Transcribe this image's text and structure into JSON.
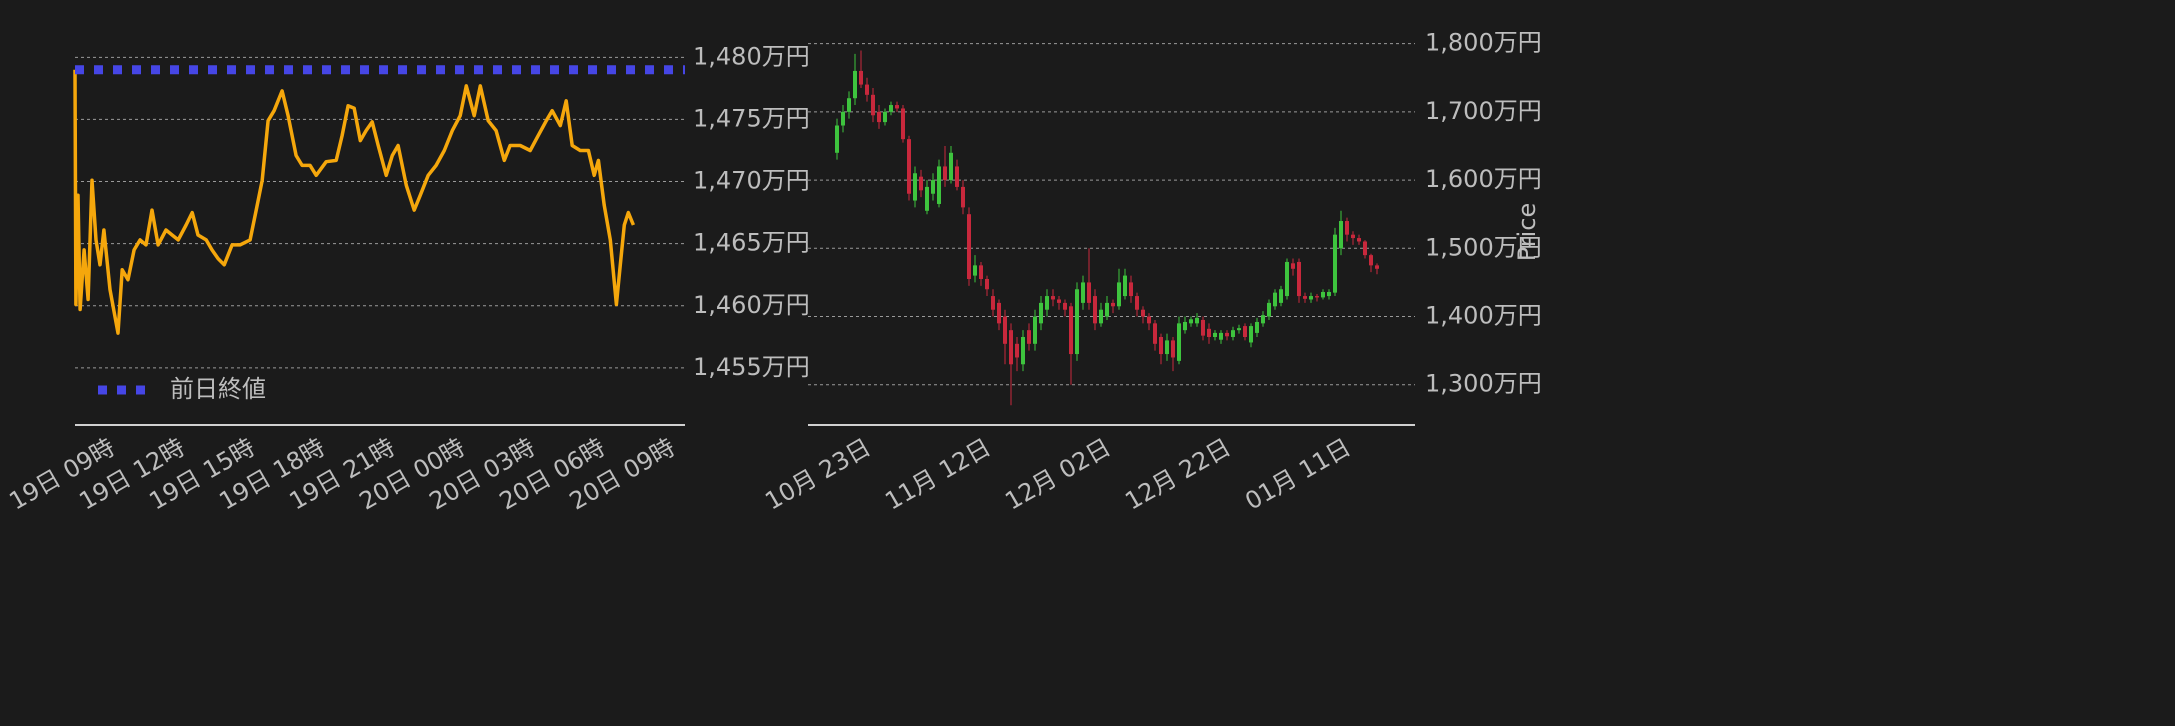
{
  "chart_data": [
    {
      "type": "line",
      "xlim": [
        7.37,
        33.5
      ],
      "xticks": [
        {
          "value": 9,
          "label": "19日 09時"
        },
        {
          "value": 12,
          "label": "19日 12時"
        },
        {
          "value": 15,
          "label": "19日 15時"
        },
        {
          "value": 18,
          "label": "19日 18時"
        },
        {
          "value": 21,
          "label": "19日 21時"
        },
        {
          "value": 24,
          "label": "20日 00時"
        },
        {
          "value": 27,
          "label": "20日 03時"
        },
        {
          "value": 30,
          "label": "20日 06時"
        },
        {
          "value": 33,
          "label": "20日 09時"
        }
      ],
      "ylim": [
        1450.4,
        1482.2
      ],
      "yticks": [
        {
          "value": 1455,
          "label": "1,455万円"
        },
        {
          "value": 1460,
          "label": "1,460万円"
        },
        {
          "value": 1465,
          "label": "1,465万円"
        },
        {
          "value": 1470,
          "label": "1,470万円"
        },
        {
          "value": 1475,
          "label": "1,475万円"
        },
        {
          "value": 1480,
          "label": "1,480万円"
        }
      ],
      "grid": true,
      "legend": "lower left",
      "series": [
        {
          "color": "#f5a70c",
          "x": [
            7.37,
            7.41,
            7.5,
            7.59,
            7.76,
            7.93,
            8.1,
            8.27,
            8.44,
            8.61,
            8.87,
            9.21,
            9.39,
            9.64,
            9.9,
            10.16,
            10.41,
            10.67,
            10.93,
            11.27,
            11.53,
            11.79,
            12.13,
            12.39,
            12.64,
            12.99,
            13.24,
            13.5,
            13.76,
            14.1,
            14.44,
            14.87,
            15.13,
            15.39,
            15.64,
            15.9,
            16.24,
            16.5,
            16.84,
            17.1,
            17.44,
            17.7,
            18.13,
            18.56,
            18.81,
            19.07,
            19.33,
            19.59,
            19.84,
            20.1,
            20.36,
            20.7,
            20.96,
            21.21,
            21.56,
            21.9,
            22.16,
            22.5,
            22.84,
            23.19,
            23.53,
            23.87,
            24.13,
            24.47,
            24.73,
            25.07,
            25.41,
            25.76,
            26.01,
            26.44,
            26.87,
            27.21,
            27.56,
            27.81,
            28.16,
            28.41,
            28.67,
            29.01,
            29.36,
            29.61,
            29.79,
            30.04,
            30.3,
            30.56,
            30.73,
            30.9,
            31.07,
            31.29
          ],
          "values": [
            1479.0,
            1460.1,
            1468.9,
            1459.7,
            1464.5,
            1460.5,
            1470.1,
            1465.3,
            1463.3,
            1466.1,
            1461.3,
            1457.8,
            1462.9,
            1462.1,
            1464.5,
            1465.3,
            1464.9,
            1467.7,
            1464.9,
            1466.1,
            1465.7,
            1465.3,
            1466.5,
            1467.5,
            1465.7,
            1465.3,
            1464.5,
            1463.8,
            1463.3,
            1464.9,
            1464.9,
            1465.3,
            1467.7,
            1470.1,
            1474.9,
            1475.7,
            1477.3,
            1475.3,
            1472.1,
            1471.3,
            1471.3,
            1470.5,
            1471.6,
            1471.7,
            1473.7,
            1476.1,
            1475.9,
            1473.3,
            1474.1,
            1474.8,
            1472.9,
            1470.5,
            1472.1,
            1472.9,
            1469.7,
            1467.7,
            1468.9,
            1470.5,
            1471.3,
            1472.5,
            1474.1,
            1475.3,
            1477.7,
            1475.3,
            1477.7,
            1474.9,
            1474.1,
            1471.7,
            1472.9,
            1472.9,
            1472.5,
            1473.7,
            1474.9,
            1475.7,
            1474.5,
            1476.5,
            1472.9,
            1472.5,
            1472.5,
            1470.5,
            1471.7,
            1468.1,
            1465.3,
            1460.1,
            1463.3,
            1466.5,
            1467.5,
            1466.5
          ]
        },
        {
          "name": "前日終値",
          "color": "#4646e6",
          "style": "dotted",
          "x": [
            7.37,
            33.5
          ],
          "values": [
            1479,
            1479
          ]
        }
      ]
    },
    {
      "type": "candlestick",
      "y_label": "Price",
      "categories": [
        null,
        null,
        null,
        "10月 23日",
        null,
        null,
        null,
        null,
        null,
        null,
        null,
        null,
        null,
        null,
        null,
        null,
        null,
        null,
        null,
        null,
        null,
        null,
        null,
        "11月 12日",
        null,
        null,
        null,
        null,
        null,
        null,
        null,
        null,
        null,
        null,
        null,
        null,
        null,
        null,
        null,
        null,
        null,
        null,
        null,
        "12月 02日",
        null,
        null,
        null,
        null,
        null,
        null,
        null,
        null,
        null,
        null,
        null,
        null,
        null,
        null,
        null,
        null,
        null,
        null,
        null,
        "12月 22日",
        null,
        null,
        null,
        null,
        null,
        null,
        null,
        null,
        null,
        null,
        null,
        null,
        null,
        null,
        null,
        null,
        null,
        null,
        null,
        "01月 11日",
        null,
        null,
        null,
        null,
        null,
        null,
        null
      ],
      "open": [
        1640,
        1680,
        1700,
        1720,
        1760,
        1740,
        1725,
        1700,
        1685,
        1700,
        1710,
        1705,
        1660,
        1570,
        1605,
        1555,
        1580,
        1565,
        1620,
        1600,
        1620,
        1590,
        1550,
        1460,
        1475,
        1455,
        1430,
        1420,
        1400,
        1380,
        1360,
        1330,
        1380,
        1360,
        1390,
        1410,
        1430,
        1425,
        1420,
        1415,
        1345,
        1420,
        1450,
        1430,
        1390,
        1400,
        1420,
        1415,
        1430,
        1450,
        1430,
        1410,
        1400,
        1390,
        1370,
        1345,
        1365,
        1335,
        1380,
        1390,
        1390,
        1395,
        1382,
        1370,
        1366,
        1376,
        1370,
        1380,
        1386,
        1362,
        1376,
        1390,
        1400,
        1415,
        1420,
        1430,
        1478,
        1480,
        1430,
        1425,
        1430,
        1428,
        1430,
        1435,
        1500,
        1540,
        1520,
        1515,
        1510,
        1490,
        1475
      ],
      "high": [
        1690,
        1710,
        1730,
        1785,
        1790,
        1750,
        1735,
        1710,
        1705,
        1715,
        1715,
        1710,
        1665,
        1620,
        1615,
        1600,
        1610,
        1630,
        1650,
        1650,
        1630,
        1600,
        1560,
        1490,
        1480,
        1460,
        1440,
        1425,
        1410,
        1390,
        1370,
        1380,
        1390,
        1410,
        1430,
        1440,
        1440,
        1430,
        1425,
        1420,
        1450,
        1460,
        1500,
        1440,
        1420,
        1430,
        1425,
        1470,
        1470,
        1460,
        1435,
        1415,
        1405,
        1395,
        1375,
        1375,
        1370,
        1400,
        1400,
        1400,
        1405,
        1400,
        1390,
        1380,
        1380,
        1380,
        1385,
        1388,
        1390,
        1390,
        1398,
        1408,
        1425,
        1440,
        1445,
        1485,
        1485,
        1485,
        1435,
        1435,
        1433,
        1440,
        1440,
        1530,
        1555,
        1545,
        1525,
        1520,
        1512,
        1492,
        1478
      ],
      "low": [
        1630,
        1670,
        1690,
        1710,
        1735,
        1715,
        1685,
        1675,
        1680,
        1695,
        1700,
        1655,
        1570,
        1560,
        1575,
        1550,
        1570,
        1560,
        1590,
        1595,
        1585,
        1550,
        1445,
        1450,
        1445,
        1430,
        1400,
        1380,
        1330,
        1270,
        1320,
        1320,
        1350,
        1350,
        1380,
        1400,
        1415,
        1410,
        1400,
        1300,
        1335,
        1410,
        1410,
        1380,
        1385,
        1395,
        1405,
        1410,
        1425,
        1420,
        1400,
        1390,
        1380,
        1350,
        1330,
        1335,
        1320,
        1330,
        1375,
        1385,
        1385,
        1365,
        1360,
        1365,
        1360,
        1365,
        1365,
        1375,
        1365,
        1355,
        1370,
        1385,
        1395,
        1410,
        1415,
        1425,
        1460,
        1420,
        1420,
        1420,
        1422,
        1425,
        1425,
        1430,
        1490,
        1510,
        1505,
        1505,
        1485,
        1465,
        1462
      ],
      "close": [
        1680,
        1700,
        1720,
        1760,
        1740,
        1725,
        1695,
        1685,
        1700,
        1710,
        1705,
        1660,
        1580,
        1610,
        1585,
        1590,
        1600,
        1620,
        1600,
        1640,
        1590,
        1560,
        1455,
        1475,
        1455,
        1440,
        1410,
        1390,
        1360,
        1330,
        1340,
        1370,
        1360,
        1400,
        1420,
        1430,
        1425,
        1420,
        1410,
        1345,
        1440,
        1450,
        1420,
        1390,
        1410,
        1420,
        1415,
        1450,
        1460,
        1430,
        1410,
        1400,
        1390,
        1360,
        1345,
        1365,
        1340,
        1390,
        1392,
        1396,
        1398,
        1372,
        1370,
        1376,
        1376,
        1371,
        1380,
        1383,
        1370,
        1386,
        1392,
        1402,
        1420,
        1435,
        1440,
        1480,
        1470,
        1430,
        1426,
        1430,
        1428,
        1436,
        1436,
        1520,
        1540,
        1520,
        1515,
        1510,
        1490,
        1475,
        1470
      ],
      "up_color": "#3ec43e",
      "down_color": "#c8283c",
      "ylim": [
        1241,
        1820
      ],
      "yticks": [
        {
          "value": 1300,
          "label": "1,300万円"
        },
        {
          "value": 1400,
          "label": "1,400万円"
        },
        {
          "value": 1500,
          "label": "1,500万円"
        },
        {
          "value": 1600,
          "label": "1,600万円"
        },
        {
          "value": 1700,
          "label": "1,700万円"
        },
        {
          "value": 1800,
          "label": "1,800万円"
        }
      ],
      "grid": true
    }
  ]
}
